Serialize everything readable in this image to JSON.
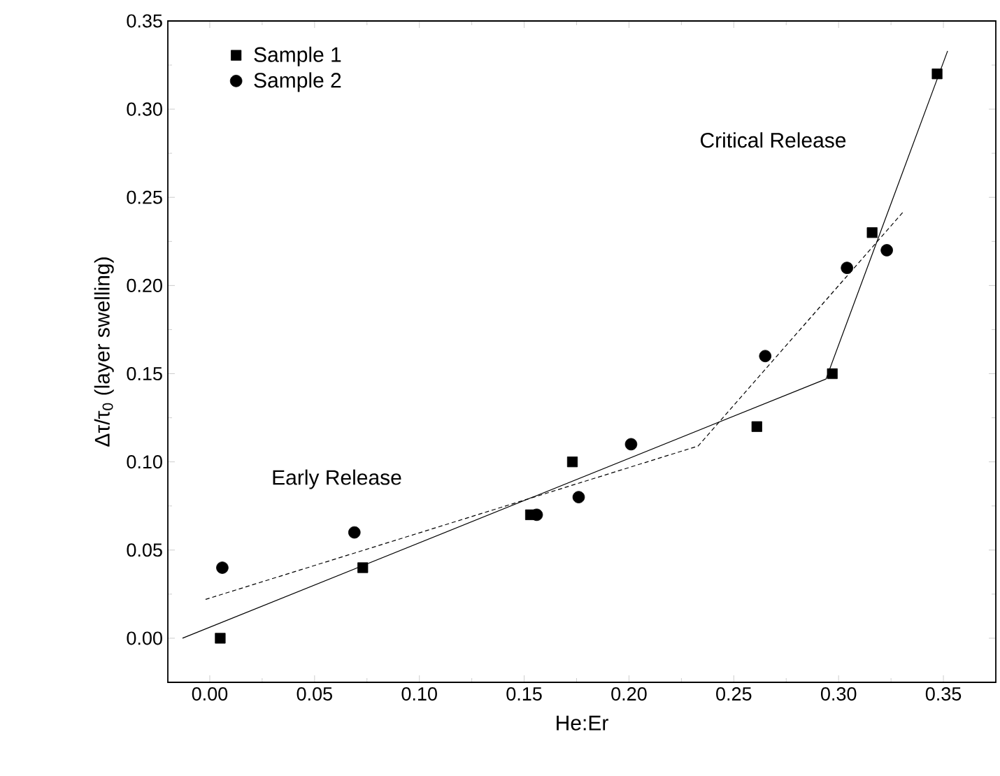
{
  "chart_data": {
    "type": "scatter",
    "xlabel": "He:Er",
    "ylabel": "Δτ/τ$_{0}$ (layer swelling)",
    "xlim": [
      -0.02,
      0.375
    ],
    "ylim": [
      -0.025,
      0.35
    ],
    "xticks": [
      {
        "value": 0,
        "label": "0.00"
      },
      {
        "value": 0.05,
        "label": "0.05"
      },
      {
        "value": 0.1,
        "label": "0.10"
      },
      {
        "value": 0.15,
        "label": "0.15"
      },
      {
        "value": 0.2,
        "label": "0.20"
      },
      {
        "value": 0.25,
        "label": "0.25"
      },
      {
        "value": 0.3,
        "label": "0.30"
      },
      {
        "value": 0.35,
        "label": "0.35"
      }
    ],
    "yticks": [
      {
        "value": 0,
        "label": "0.00"
      },
      {
        "value": 0.05,
        "label": "0.05"
      },
      {
        "value": 0.1,
        "label": "0.10"
      },
      {
        "value": 0.15,
        "label": "0.15"
      },
      {
        "value": 0.2,
        "label": "0.20"
      },
      {
        "value": 0.25,
        "label": "0.25"
      },
      {
        "value": 0.3,
        "label": "0.30"
      },
      {
        "value": 0.35,
        "label": "0.35"
      }
    ],
    "legend": "top left",
    "grid": false,
    "annotations": [
      "Early Release",
      "Critical Release"
    ],
    "series": [
      {
        "name": "Sample 1",
        "marker": "square",
        "color": "#000000",
        "x": [
          0.005,
          0.073,
          0.153,
          0.173,
          0.261,
          0.297,
          0.316,
          0.347
        ],
        "values": [
          0.0,
          0.04,
          0.07,
          0.1,
          0.12,
          0.15,
          0.23,
          0.32
        ]
      },
      {
        "name": "Sample 2",
        "marker": "circle",
        "color": "#000000",
        "x": [
          0.006,
          0.069,
          0.156,
          0.176,
          0.201,
          0.265,
          0.304,
          0.323
        ],
        "values": [
          0.04,
          0.06,
          0.07,
          0.08,
          0.11,
          0.16,
          0.21,
          0.22
        ]
      },
      {
        "type": "line",
        "line_style": "solid",
        "color": "#000000",
        "x": [
          -0.013,
          0.294,
          0.352
        ],
        "values": [
          0.0,
          0.147,
          0.333
        ]
      },
      {
        "type": "line",
        "line_style": "dashed",
        "color": "#000000",
        "x": [
          -0.002,
          0.233,
          0.331
        ],
        "values": [
          0.022,
          0.109,
          0.242
        ]
      }
    ]
  }
}
